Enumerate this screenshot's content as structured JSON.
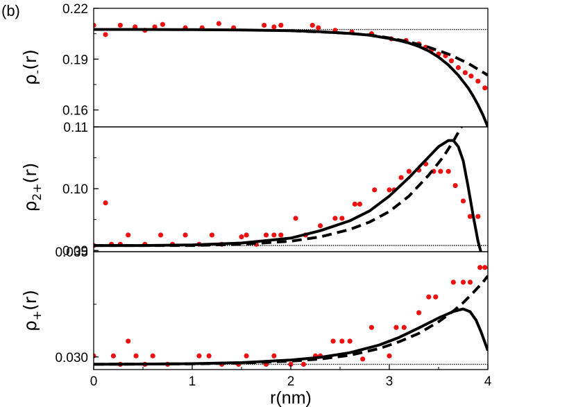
{
  "panel_label": "(b)",
  "chart_data": [
    {
      "type": "scatter",
      "ylabel": "ρ-(r)",
      "ylabel_base": "ρ",
      "ylabel_sub": "-",
      "ylabel_tail": "(r)",
      "xlim": [
        0,
        4
      ],
      "ylim": [
        0.15,
        0.22
      ],
      "yticks": [
        0.16,
        0.19,
        0.22
      ],
      "ytick_labels": [
        "0.16",
        "0.19",
        "0.22"
      ],
      "reference_line": 0.2075,
      "series": [
        {
          "style": "red-dots",
          "x": [
            0.0,
            0.12,
            0.27,
            0.42,
            0.52,
            0.62,
            0.7,
            0.93,
            1.1,
            1.27,
            1.42,
            1.73,
            1.83,
            1.9,
            2.22,
            2.28,
            2.45,
            2.62,
            2.82,
            3.02,
            3.17,
            3.3,
            3.37,
            3.43,
            3.5,
            3.57,
            3.63,
            3.7,
            3.77,
            3.83,
            3.9,
            3.97
          ],
          "y": [
            0.21,
            0.2045,
            0.21,
            0.209,
            0.207,
            0.209,
            0.2105,
            0.2085,
            0.2085,
            0.211,
            0.2085,
            0.21,
            0.209,
            0.21,
            0.21,
            0.2085,
            0.207,
            0.206,
            0.205,
            0.202,
            0.201,
            0.199,
            0.197,
            0.1955,
            0.193,
            0.192,
            0.189,
            0.185,
            0.182,
            0.18,
            0.177,
            0.173
          ]
        },
        {
          "style": "solid",
          "x": [
            0,
            0.5,
            1,
            1.5,
            2,
            2.3,
            2.6,
            2.8,
            3.0,
            3.1,
            3.2,
            3.3,
            3.4,
            3.5,
            3.6,
            3.7,
            3.8,
            3.85,
            3.9,
            3.95,
            4.0
          ],
          "y": [
            0.2075,
            0.2075,
            0.2074,
            0.2072,
            0.2068,
            0.2062,
            0.2052,
            0.2041,
            0.2022,
            0.201,
            0.1995,
            0.1975,
            0.1948,
            0.1912,
            0.1865,
            0.1805,
            0.173,
            0.1683,
            0.163,
            0.157,
            0.15
          ]
        },
        {
          "style": "dashed",
          "x": [
            2.0,
            2.5,
            2.8,
            3.0,
            3.2,
            3.4,
            3.6,
            3.8,
            4.0
          ],
          "y": [
            0.2068,
            0.2055,
            0.2043,
            0.2025,
            0.2002,
            0.197,
            0.193,
            0.1875,
            0.1805
          ]
        }
      ]
    },
    {
      "type": "scatter",
      "ylabel": "ρ2+(r)",
      "ylabel_base": "ρ",
      "ylabel_sub": "2+",
      "ylabel_tail": "(r)",
      "xlim": [
        0,
        4
      ],
      "ylim": [
        0.0898,
        0.11
      ],
      "yticks": [
        0.09,
        0.1,
        0.11
      ],
      "ytick_labels": [
        "0.09",
        "0.10",
        "0.11"
      ],
      "reference_line": 0.0908,
      "series": [
        {
          "style": "red-dots",
          "x": [
            0.0,
            0.12,
            0.18,
            0.27,
            0.35,
            0.42,
            0.52,
            0.6,
            0.68,
            0.8,
            0.93,
            1.07,
            1.2,
            1.3,
            1.5,
            1.55,
            1.65,
            1.75,
            1.83,
            1.9,
            2.05,
            2.15,
            2.3,
            2.45,
            2.52,
            2.65,
            2.7,
            2.85,
            3.0,
            3.05,
            3.12,
            3.2,
            3.3,
            3.37,
            3.45,
            3.52,
            3.6,
            3.67,
            3.75,
            3.82,
            3.9
          ],
          "y": [
            0.0908,
            0.0977,
            0.091,
            0.091,
            0.0925,
            0.0888,
            0.091,
            0.0888,
            0.0925,
            0.091,
            0.0925,
            0.091,
            0.0925,
            0.091,
            0.0922,
            0.0925,
            0.091,
            0.0925,
            0.0925,
            0.0925,
            0.0952,
            0.0925,
            0.094,
            0.0952,
            0.0952,
            0.0975,
            0.0975,
            0.0998,
            0.0998,
            0.0998,
            0.1018,
            0.1028,
            0.103,
            0.104,
            0.1028,
            0.1028,
            0.1028,
            0.1005,
            0.098,
            0.0955,
            0.0955
          ]
        },
        {
          "style": "solid",
          "x": [
            0,
            0.5,
            1,
            1.5,
            2,
            2.3,
            2.6,
            2.8,
            3.0,
            3.2,
            3.35,
            3.5,
            3.6,
            3.65,
            3.7,
            3.75,
            3.8,
            3.85,
            3.9,
            3.93,
            3.95
          ],
          "y": [
            0.0908,
            0.0908,
            0.0909,
            0.0912,
            0.092,
            0.0932,
            0.0948,
            0.0964,
            0.0988,
            0.1018,
            0.1043,
            0.1068,
            0.1078,
            0.1078,
            0.1068,
            0.1045,
            0.1003,
            0.0957,
            0.0915,
            0.0897,
            0.0885
          ]
        },
        {
          "style": "dashed",
          "x": [
            0,
            0.5,
            1,
            1.5,
            2,
            2.3,
            2.6,
            2.8,
            3.0,
            3.2,
            3.4,
            3.55,
            3.65,
            3.75,
            3.82
          ],
          "y": [
            0.0908,
            0.0908,
            0.0908,
            0.091,
            0.0915,
            0.0922,
            0.0934,
            0.0946,
            0.0963,
            0.0988,
            0.1022,
            0.1052,
            0.1077,
            0.1105,
            0.1125
          ]
        }
      ]
    },
    {
      "type": "scatter",
      "ylabel": "ρ+(r)",
      "ylabel_base": "ρ",
      "ylabel_sub": "+",
      "ylabel_tail": "(r)",
      "xlabel": "r(nm)",
      "xlim": [
        0,
        4
      ],
      "xticks": [
        0,
        1,
        2,
        3,
        4
      ],
      "xtick_labels": [
        "0",
        "1",
        "2",
        "3",
        "4"
      ],
      "ylim": [
        0.0294,
        0.035
      ],
      "yticks": [
        0.03,
        0.035
      ],
      "ytick_labels": [
        "0.030",
        "0.035"
      ],
      "reference_line": 0.02965,
      "series": [
        {
          "style": "red-dots",
          "x": [
            0.0,
            0.2,
            0.27,
            0.35,
            0.43,
            0.52,
            0.6,
            0.75,
            1.07,
            1.17,
            1.3,
            1.47,
            1.55,
            1.75,
            1.83,
            2.0,
            2.13,
            2.25,
            2.3,
            2.43,
            2.52,
            2.6,
            2.73,
            2.82,
            3.0,
            3.07,
            3.15,
            3.3,
            3.4,
            3.47,
            3.65,
            3.75,
            3.82,
            3.92,
            3.97
          ],
          "y": [
            0.03005,
            0.03005,
            0.02965,
            0.03075,
            0.03005,
            0.02965,
            0.03005,
            0.02965,
            0.03005,
            0.03005,
            0.02965,
            0.02965,
            0.03005,
            0.02965,
            0.03005,
            0.02965,
            0.02965,
            0.03005,
            0.03005,
            0.03075,
            0.03075,
            0.03075,
            0.0299,
            0.0314,
            0.03005,
            0.0314,
            0.0314,
            0.0321,
            0.03285,
            0.03285,
            0.03355,
            0.03355,
            0.03355,
            0.03425,
            0.03425
          ]
        },
        {
          "style": "solid",
          "x": [
            0,
            0.5,
            1,
            1.5,
            2,
            2.3,
            2.6,
            2.9,
            3.1,
            3.3,
            3.5,
            3.65,
            3.75,
            3.82,
            3.88,
            3.93,
            4.0
          ],
          "y": [
            0.02965,
            0.02966,
            0.02968,
            0.02973,
            0.02985,
            0.02998,
            0.0302,
            0.03057,
            0.03093,
            0.03138,
            0.03185,
            0.03216,
            0.03228,
            0.03215,
            0.03175,
            0.0312,
            0.0303
          ]
        },
        {
          "style": "dashed",
          "x": [
            0,
            0.5,
            1,
            1.5,
            2,
            2.3,
            2.6,
            2.9,
            3.1,
            3.3,
            3.5,
            3.65,
            3.75,
            3.85,
            3.95,
            4.0
          ],
          "y": [
            0.02965,
            0.02966,
            0.02967,
            0.02971,
            0.0298,
            0.0299,
            0.03008,
            0.0304,
            0.03072,
            0.03112,
            0.03167,
            0.03218,
            0.03258,
            0.03305,
            0.03355,
            0.03385
          ]
        }
      ]
    }
  ]
}
